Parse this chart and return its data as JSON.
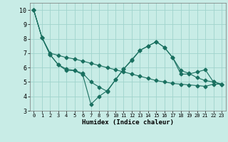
{
  "xlabel": "Humidex (Indice chaleur)",
  "bg_color": "#c8ece6",
  "grid_color": "#a0d4cc",
  "line_color": "#1a7060",
  "xlim": [
    -0.5,
    23.5
  ],
  "ylim": [
    3,
    10.5
  ],
  "xticks": [
    0,
    1,
    2,
    3,
    4,
    5,
    6,
    7,
    8,
    9,
    10,
    11,
    12,
    13,
    14,
    15,
    16,
    17,
    18,
    19,
    20,
    21,
    22,
    23
  ],
  "yticks": [
    3,
    4,
    5,
    6,
    7,
    8,
    9,
    10
  ],
  "line1_x": [
    0,
    1,
    2,
    3,
    4,
    5,
    6,
    7,
    8,
    9,
    10,
    11,
    12,
    13,
    14,
    15,
    16,
    17,
    18,
    19,
    20,
    21,
    22,
    23
  ],
  "line1_y": [
    10,
    8.1,
    6.9,
    6.2,
    5.8,
    5.8,
    5.6,
    5.0,
    4.65,
    4.35,
    5.15,
    5.9,
    6.5,
    7.2,
    7.5,
    7.8,
    7.4,
    6.7,
    5.8,
    5.6,
    5.3,
    5.1,
    5.0,
    4.85
  ],
  "line2_x": [
    0,
    1,
    2,
    3,
    4,
    5,
    6,
    7,
    8,
    9,
    10,
    11,
    12,
    13,
    14,
    15,
    16,
    17,
    18,
    19,
    20,
    21,
    22,
    23
  ],
  "line2_y": [
    10,
    8.1,
    7.0,
    6.85,
    6.7,
    6.6,
    6.45,
    6.3,
    6.15,
    6.0,
    5.85,
    5.7,
    5.55,
    5.4,
    5.25,
    5.1,
    5.0,
    4.9,
    4.85,
    4.8,
    4.75,
    4.7,
    4.85,
    4.85
  ],
  "line3_x": [
    0,
    1,
    2,
    3,
    4,
    5,
    6,
    7,
    8,
    9,
    10,
    11,
    12,
    13,
    14,
    15,
    16,
    17,
    18,
    19,
    20,
    21,
    22,
    23
  ],
  "line3_y": [
    10,
    8.1,
    6.9,
    6.2,
    5.9,
    5.8,
    5.5,
    3.45,
    4.0,
    4.4,
    5.15,
    5.9,
    6.55,
    7.2,
    7.5,
    7.8,
    7.4,
    6.7,
    5.55,
    5.55,
    5.7,
    5.85,
    5.0,
    4.85
  ]
}
